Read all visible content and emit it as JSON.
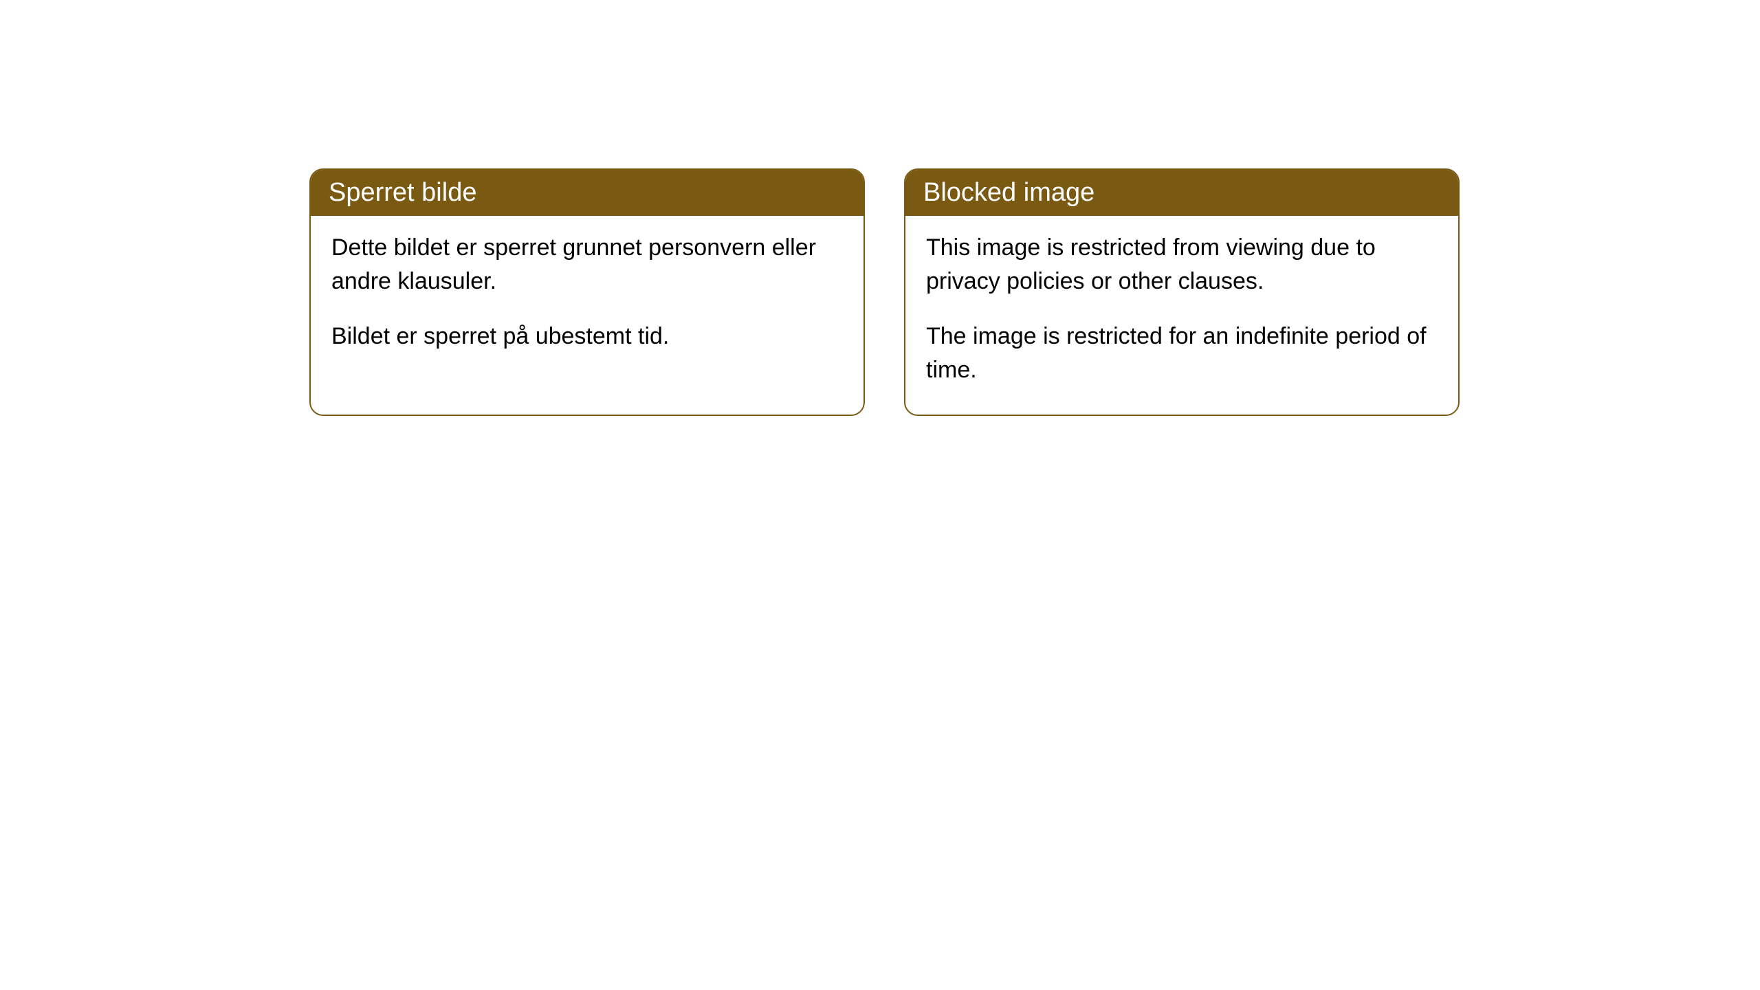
{
  "cards": [
    {
      "title": "Sperret bilde",
      "paragraph1": "Dette bildet er sperret grunnet personvern eller andre klausuler.",
      "paragraph2": "Bildet er sperret på ubestemt tid."
    },
    {
      "title": "Blocked image",
      "paragraph1": "This image is restricted from viewing due to privacy policies or other clauses.",
      "paragraph2": "The image is restricted for an indefinite period of time."
    }
  ],
  "style": {
    "header_background": "#7a5a13",
    "header_text_color": "#ffffff",
    "border_color": "#7a5a13",
    "body_background": "#ffffff",
    "body_text_color": "#000000",
    "border_radius": 20,
    "title_fontsize": 38,
    "body_fontsize": 34
  }
}
